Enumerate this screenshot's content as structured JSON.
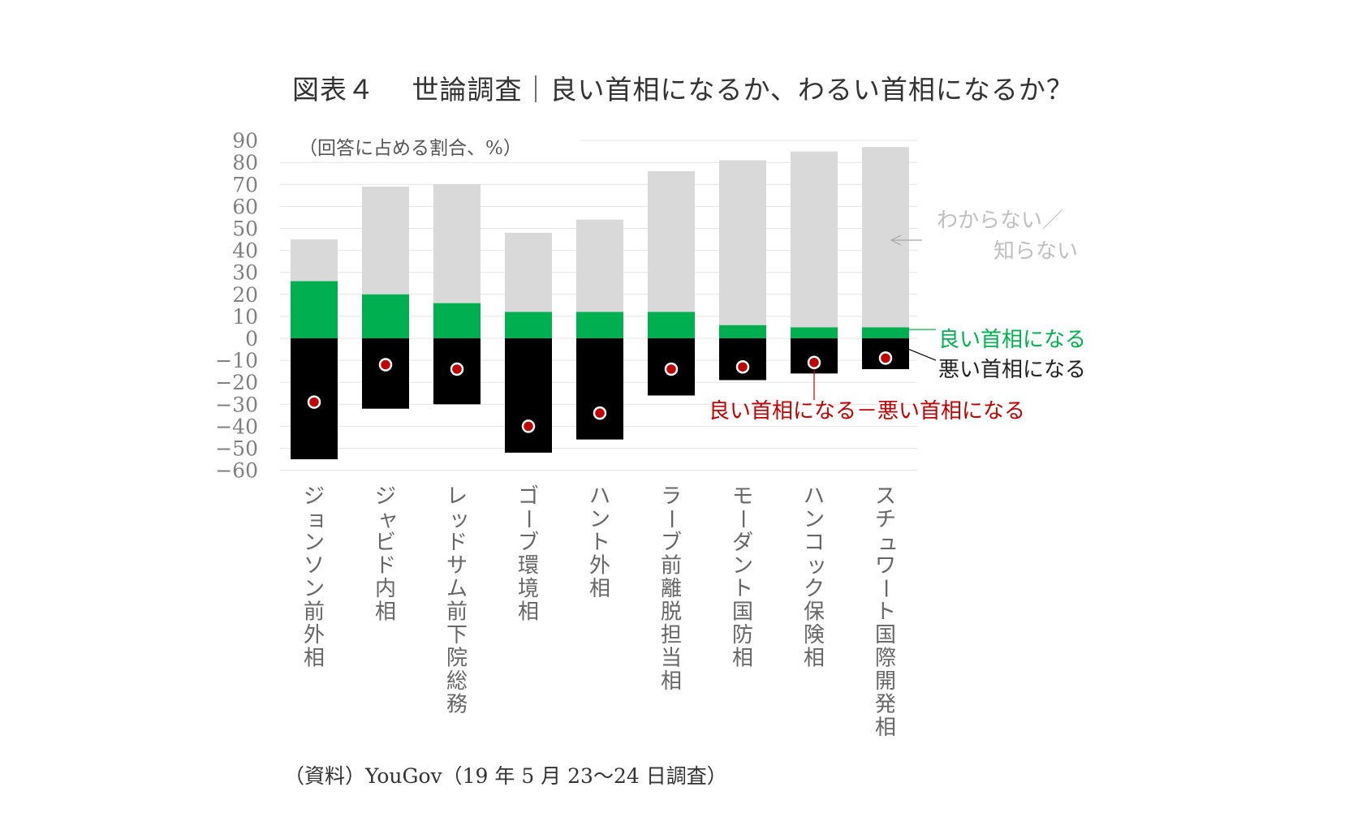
{
  "title": "図表４　 世論調査｜良い首相になるか、わるい首相になるか？",
  "source": "（資料）YouGov（19 年 5 月 23～24 日調査）",
  "chart_data": {
    "type": "bar",
    "unit_note": "（回答に占める割合、%）",
    "ylim": [
      -60,
      90
    ],
    "yticks": [
      90,
      80,
      70,
      60,
      50,
      40,
      30,
      20,
      10,
      0,
      -10,
      -20,
      -30,
      -40,
      -50,
      -60
    ],
    "ytick_labels": [
      "90",
      "80",
      "70",
      "60",
      "50",
      "40",
      "30",
      "20",
      "10",
      "0",
      "−10",
      "−20",
      "−30",
      "−40",
      "−50",
      "−60"
    ],
    "grid": true,
    "categories": [
      "ジョンソン前外相",
      "ジャビド内相",
      "レッドサム前下院総務",
      "ゴーブ環境相",
      "ハント外相",
      "ラーブ前離脱担当相",
      "モーダント国防相",
      "ハンコック保険相",
      "スチュワート国際開発相"
    ],
    "series": [
      {
        "name": "良い首相になる",
        "color": "#00b050",
        "values": [
          26,
          20,
          16,
          12,
          12,
          12,
          6,
          5,
          5
        ]
      },
      {
        "name": "悪い首相になる",
        "color": "#000000",
        "values": [
          -55,
          -32,
          -30,
          -52,
          -46,
          -26,
          -19,
          -16,
          -14
        ]
      },
      {
        "name": "わからない／知らない",
        "color": "#d9d9d9",
        "values": [
          19,
          49,
          54,
          36,
          42,
          64,
          75,
          80,
          82
        ]
      },
      {
        "name": "良い首相になる－悪い首相になる",
        "color": "#c00000",
        "values": [
          -29,
          -12,
          -14,
          -40,
          -34,
          -14,
          -13,
          -11,
          -9
        ]
      }
    ],
    "legend": {
      "unknown_line1": "わからない／",
      "unknown_line2": "知らない",
      "good": "良い首相になる",
      "bad": "悪い首相になる",
      "net": "良い首相になる－悪い首相になる"
    },
    "colors": {
      "unknown": "#d9d9d9",
      "good": "#00b050",
      "bad": "#000000",
      "net": "#c00000",
      "legend_unknown_text": "#bfbfbf"
    }
  }
}
